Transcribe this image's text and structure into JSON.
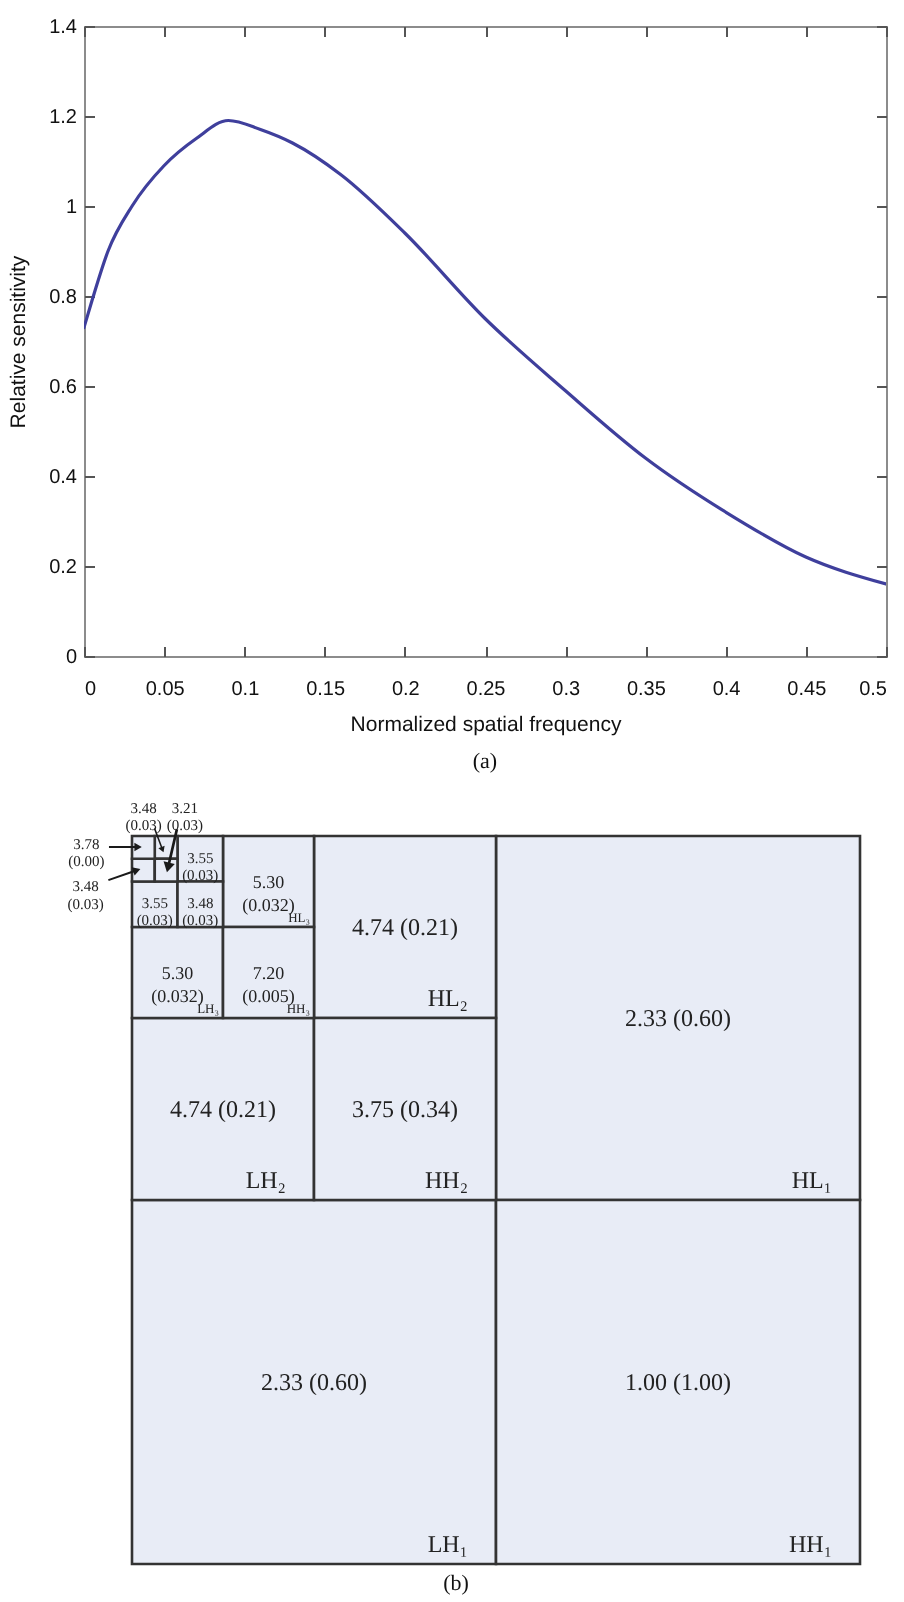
{
  "chart_data": [
    {
      "type": "line",
      "xlabel": "Normalized spatial frequency",
      "ylabel": "Relative sensitivity",
      "x": [
        0,
        0.005,
        0.015,
        0.03,
        0.05,
        0.07,
        0.09,
        0.11,
        0.13,
        0.16,
        0.2,
        0.25,
        0.3,
        0.35,
        0.4,
        0.45,
        0.5
      ],
      "values": [
        0.73,
        0.79,
        0.9,
        1.0,
        1.09,
        1.15,
        1.19,
        1.17,
        1.14,
        1.07,
        0.94,
        0.75,
        0.59,
        0.44,
        0.32,
        0.22,
        0.16
      ],
      "color": "#3f3f9c",
      "xlim": [
        0,
        0.5
      ],
      "ylim": [
        0,
        1.4
      ],
      "xticks": [
        0,
        0.05,
        0.1,
        0.15,
        0.2,
        0.25,
        0.3,
        0.35,
        0.4,
        0.45,
        0.5
      ],
      "yticks": [
        0,
        0.2,
        0.4,
        0.6,
        0.8,
        1,
        1.2,
        1.4
      ],
      "grid": false,
      "annotations": [
        "(a)"
      ]
    },
    {
      "type": "other",
      "categories": [
        "HL₁",
        "LH₁",
        "HH₁",
        "HL₂",
        "LH₂",
        "HH₂",
        "HL₃",
        "LH₃",
        "HH₃",
        null,
        null,
        null,
        null,
        null,
        null,
        null
      ],
      "value_labels": [
        "2.33 (0.60)",
        "2.33 (0.60)",
        "1.00 (1.00)",
        "4.74 (0.21)",
        "4.74 (0.21)",
        "3.75 (0.34)",
        "5.30 (0.032)",
        "5.30 (0.032)",
        "7.20 (0.005)",
        "3.55 (0.03)",
        "3.55 (0.03)",
        "3.48 (0.03)",
        "3.48 (0.03)",
        "3.48 (0.03)",
        "3.21 (0.03)",
        "3.78 (0.00)"
      ],
      "color": "#e8ecf6",
      "annotations": [
        "(b)"
      ]
    }
  ]
}
